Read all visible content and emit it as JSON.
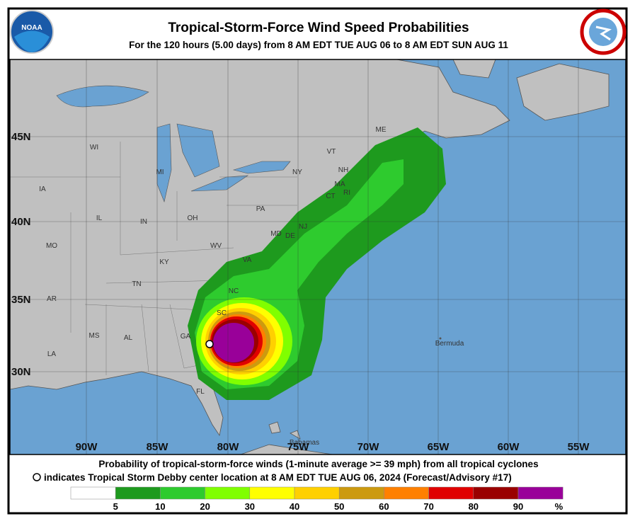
{
  "header": {
    "title": "Tropical-Storm-Force Wind Speed Probabilities",
    "subtitle": "For the 120 hours (5.00 days) from 8 AM EDT TUE AUG 06 to 8 AM EDT SUN AUG 11"
  },
  "map": {
    "lat_labels": [
      "45N",
      "40N",
      "35N",
      "30N"
    ],
    "lon_labels": [
      "90W",
      "85W",
      "80W",
      "75W",
      "70W",
      "65W",
      "60W",
      "55W"
    ],
    "place_labels": [
      "WI",
      "MI",
      "NY",
      "VT",
      "NH",
      "ME",
      "MA",
      "CT",
      "RI",
      "IA",
      "IL",
      "IN",
      "OH",
      "PA",
      "NJ",
      "MD",
      "DE",
      "MO",
      "WV",
      "VA",
      "KY",
      "TN",
      "NC",
      "AR",
      "SC",
      "MS",
      "AL",
      "GA",
      "LA",
      "FL",
      "Bermuda",
      "Bahamas"
    ]
  },
  "footer": {
    "note": "Probability of tropical-storm-force winds (1-minute average >= 39 mph) from all tropical cyclones",
    "storm_note": "indicates Tropical Storm Debby center location at 8 AM EDT TUE AUG 06, 2024 (Forecast/Advisory #17)"
  },
  "legend": {
    "labels": [
      "5",
      "10",
      "20",
      "30",
      "40",
      "50",
      "60",
      "70",
      "80",
      "90",
      "%"
    ],
    "colors": [
      "#ffffff",
      "#1e9a1e",
      "#2ecb2e",
      "#80ff00",
      "#ffff00",
      "#ffd000",
      "#cc9a10",
      "#ff8000",
      "#e00000",
      "#9a0000",
      "#990099"
    ]
  }
}
